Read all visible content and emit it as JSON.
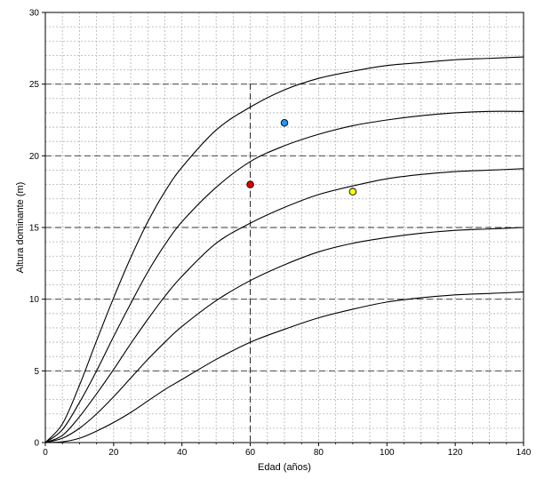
{
  "chart_data": {
    "type": "line",
    "title": "",
    "xlabel": "Edad (años)",
    "ylabel": "Altura dominante  (m)",
    "xlim": [
      0,
      140
    ],
    "ylim": [
      0,
      30
    ],
    "x_ticks": [
      0,
      20,
      40,
      60,
      80,
      100,
      120,
      140
    ],
    "y_ticks": [
      0,
      5,
      10,
      15,
      20,
      25,
      30
    ],
    "x_tick_labels": [
      "0",
      "20",
      "40",
      "60",
      "80",
      "100",
      "120",
      "140"
    ],
    "y_tick_labels": [
      "0",
      "5",
      "10",
      "15",
      "20",
      "25",
      "30"
    ],
    "grid": {
      "minor_x_step": 5,
      "minor_y_step": 1,
      "major_dashed_y": [
        5,
        10,
        15,
        20,
        25
      ]
    },
    "reference_lines": {
      "x": 60,
      "y": 18
    },
    "x": [
      0,
      5,
      10,
      15,
      20,
      25,
      30,
      35,
      40,
      50,
      60,
      70,
      80,
      90,
      100,
      110,
      120,
      130,
      140
    ],
    "series": [
      {
        "values": [
          0,
          1.3,
          4.0,
          7.1,
          10.1,
          12.9,
          15.4,
          17.5,
          19.2,
          21.8,
          23.4,
          24.6,
          25.4,
          25.9,
          26.3,
          26.5,
          26.7,
          26.8,
          26.9
        ],
        "color": "#000000"
      },
      {
        "values": [
          0,
          0.9,
          2.8,
          5.0,
          7.4,
          9.7,
          11.9,
          13.8,
          15.4,
          17.8,
          19.6,
          20.7,
          21.5,
          22.1,
          22.5,
          22.8,
          23.0,
          23.1,
          23.1
        ],
        "color": "#000000"
      },
      {
        "values": [
          0,
          0.5,
          1.8,
          3.4,
          5.1,
          6.9,
          8.6,
          10.2,
          11.6,
          13.9,
          15.3,
          16.4,
          17.3,
          17.9,
          18.4,
          18.7,
          18.9,
          19.0,
          19.1
        ],
        "color": "#000000"
      },
      {
        "values": [
          0,
          0.3,
          1.0,
          2.0,
          3.2,
          4.5,
          5.8,
          7.0,
          8.1,
          9.9,
          11.3,
          12.4,
          13.3,
          13.9,
          14.3,
          14.6,
          14.8,
          14.9,
          15.0
        ],
        "color": "#000000"
      },
      {
        "values": [
          0,
          0.05,
          0.3,
          0.8,
          1.4,
          2.1,
          2.9,
          3.7,
          4.4,
          5.8,
          7.0,
          7.9,
          8.7,
          9.3,
          9.8,
          10.1,
          10.3,
          10.4,
          10.5
        ],
        "color": "#000000"
      }
    ],
    "points": [
      {
        "x": 60,
        "y": 18.0,
        "color": "#e00000"
      },
      {
        "x": 70,
        "y": 22.3,
        "color": "#2196f3"
      },
      {
        "x": 90,
        "y": 17.5,
        "color": "#ffff00"
      }
    ]
  }
}
